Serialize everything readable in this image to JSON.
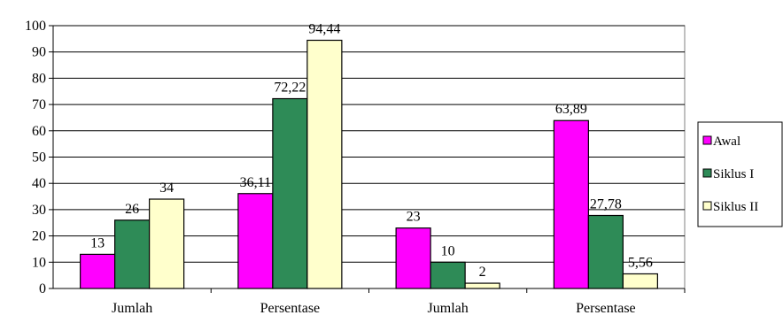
{
  "chart_data": {
    "type": "bar",
    "categories": [
      "Jumlah",
      "Persentase",
      "Jumlah",
      "Persentase"
    ],
    "series": [
      {
        "name": "Awal",
        "color": "#FF00FF",
        "values": [
          13,
          36.11,
          23,
          63.89
        ],
        "labels": [
          "13",
          "36,11",
          "23",
          "63,89"
        ]
      },
      {
        "name": "Siklus I",
        "color": "#2E8B57",
        "values": [
          26,
          72.22,
          10,
          27.78
        ],
        "labels": [
          "26",
          "72,22",
          "10",
          "27,78"
        ]
      },
      {
        "name": "Siklus II",
        "color": "#FFFFCC",
        "values": [
          34,
          94.44,
          2,
          5.56
        ],
        "labels": [
          "34",
          "94,44",
          "2",
          "5,56"
        ]
      }
    ],
    "ylim": [
      0,
      100
    ],
    "yticks": [
      0,
      10,
      20,
      30,
      40,
      50,
      60,
      70,
      80,
      90,
      100
    ],
    "grid": true,
    "legend": "right",
    "title": "",
    "xlabel": "",
    "ylabel": ""
  }
}
